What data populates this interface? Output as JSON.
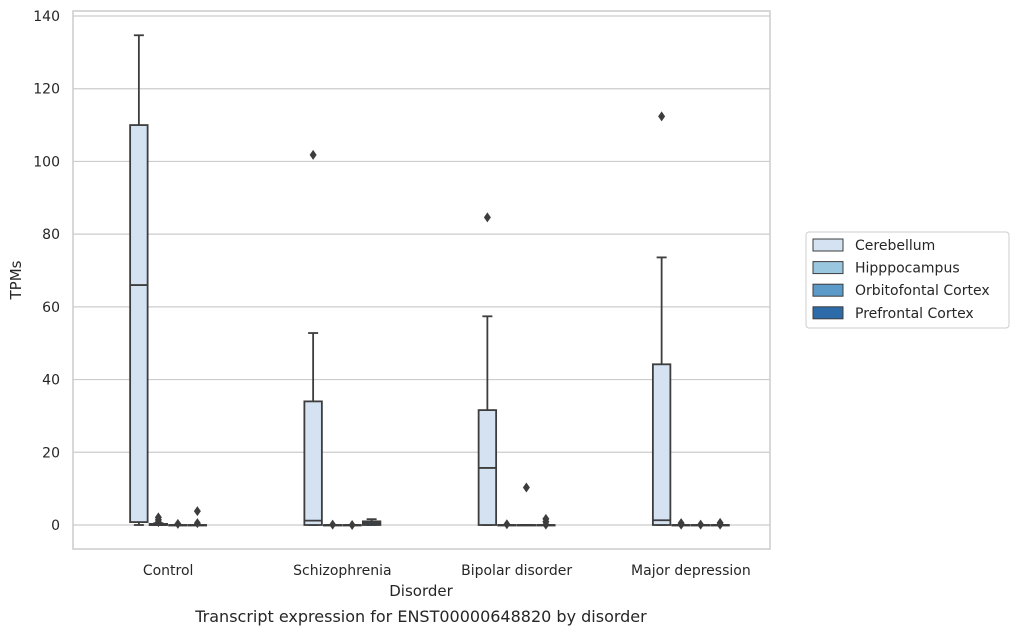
{
  "chart_data": {
    "type": "box",
    "caption": "Transcript expression for ENST00000648820 by disorder",
    "xlabel": "Disorder",
    "ylabel": "TPMs",
    "ylim": [
      -6.5,
      141
    ],
    "yticks": [
      0,
      20,
      40,
      60,
      80,
      100,
      120,
      140
    ],
    "grid": "horizontal",
    "categories": [
      "Control",
      "Schizophrenia",
      "Bipolar disorder",
      "Major depression"
    ],
    "legend": {
      "placement": "right"
    },
    "series": [
      {
        "name": "Cerebellum",
        "color": "#d4e2f1",
        "boxes": [
          {
            "q1": 0.8,
            "median": 66,
            "q3": 110,
            "whislo": 0,
            "whishi": 134.7,
            "fliers": []
          },
          {
            "q1": 0,
            "median": 1.2,
            "q3": 34,
            "whislo": 0,
            "whishi": 52.8,
            "fliers": [
              101.8
            ]
          },
          {
            "q1": 0,
            "median": 15.7,
            "q3": 31.6,
            "whislo": 0,
            "whishi": 57.4,
            "fliers": [
              84.6
            ]
          },
          {
            "q1": 0,
            "median": 1.3,
            "q3": 44.2,
            "whislo": 0,
            "whishi": 73.6,
            "fliers": [
              112.4
            ]
          }
        ]
      },
      {
        "name": "Hipppocampus",
        "color": "#9ac7e0",
        "boxes": [
          {
            "q1": 0,
            "median": 0,
            "q3": 0.3,
            "whislo": 0,
            "whishi": 0.5,
            "fliers": [
              0.8,
              1.4,
              2.1
            ]
          },
          {
            "q1": 0,
            "median": 0,
            "q3": 0,
            "whislo": 0,
            "whishi": 0,
            "fliers": [
              0.1
            ]
          },
          {
            "q1": 0,
            "median": 0,
            "q3": 0,
            "whislo": 0,
            "whishi": 0,
            "fliers": [
              0.2
            ]
          },
          {
            "q1": 0,
            "median": 0,
            "q3": 0,
            "whislo": 0,
            "whishi": 0,
            "fliers": [
              0.1,
              0.5
            ]
          }
        ]
      },
      {
        "name": "Orbitofontal Cortex",
        "color": "#5b9ac9",
        "boxes": [
          {
            "q1": 0,
            "median": 0,
            "q3": 0,
            "whislo": 0,
            "whishi": 0,
            "fliers": [
              0.3
            ]
          },
          {
            "q1": 0,
            "median": 0,
            "q3": 0,
            "whislo": 0,
            "whishi": 0,
            "fliers": [
              0
            ]
          },
          {
            "q1": 0,
            "median": 0,
            "q3": 0,
            "whislo": 0,
            "whishi": 0,
            "fliers": [
              10.3
            ]
          },
          {
            "q1": 0,
            "median": 0,
            "q3": 0,
            "whislo": 0,
            "whishi": 0,
            "fliers": [
              0.1
            ]
          }
        ]
      },
      {
        "name": "Prefrontal Cortex",
        "color": "#2c6aa8",
        "boxes": [
          {
            "q1": 0,
            "median": 0,
            "q3": 0,
            "whislo": 0,
            "whishi": 0,
            "fliers": [
              0.5,
              3.8
            ]
          },
          {
            "q1": 0,
            "median": 0.5,
            "q3": 1,
            "whislo": 0,
            "whishi": 1.6,
            "fliers": []
          },
          {
            "q1": 0,
            "median": 0,
            "q3": 0,
            "whislo": 0,
            "whishi": 0,
            "fliers": [
              0.1,
              0.9,
              1.7
            ]
          },
          {
            "q1": 0,
            "median": 0,
            "q3": 0,
            "whislo": 0,
            "whishi": 0,
            "fliers": [
              0.1,
              0.6
            ]
          }
        ]
      }
    ]
  }
}
